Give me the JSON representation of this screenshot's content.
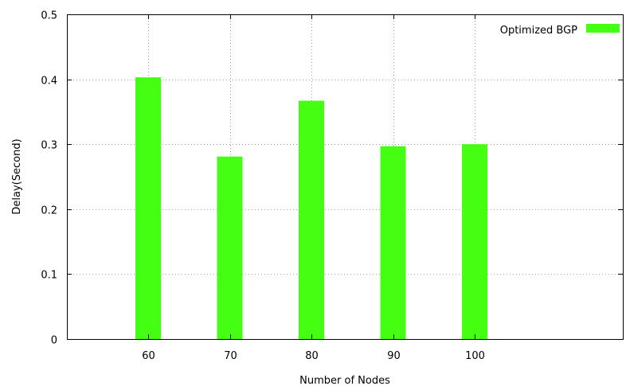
{
  "chart_data": {
    "type": "bar",
    "categories": [
      "60",
      "70",
      "80",
      "90",
      "100"
    ],
    "series": [
      {
        "name": "Optimized BGP",
        "values": [
          0.403,
          0.281,
          0.367,
          0.297,
          0.3
        ],
        "color": "#44ff11"
      }
    ],
    "xlabel": "Number of Nodes",
    "ylabel": "Delay(Second)",
    "ylim": [
      0,
      0.5
    ],
    "yticks": [
      "0",
      "0.1",
      "0.2",
      "0.3",
      "0.4",
      "0.5"
    ],
    "grid": true,
    "legend": "top-right"
  }
}
